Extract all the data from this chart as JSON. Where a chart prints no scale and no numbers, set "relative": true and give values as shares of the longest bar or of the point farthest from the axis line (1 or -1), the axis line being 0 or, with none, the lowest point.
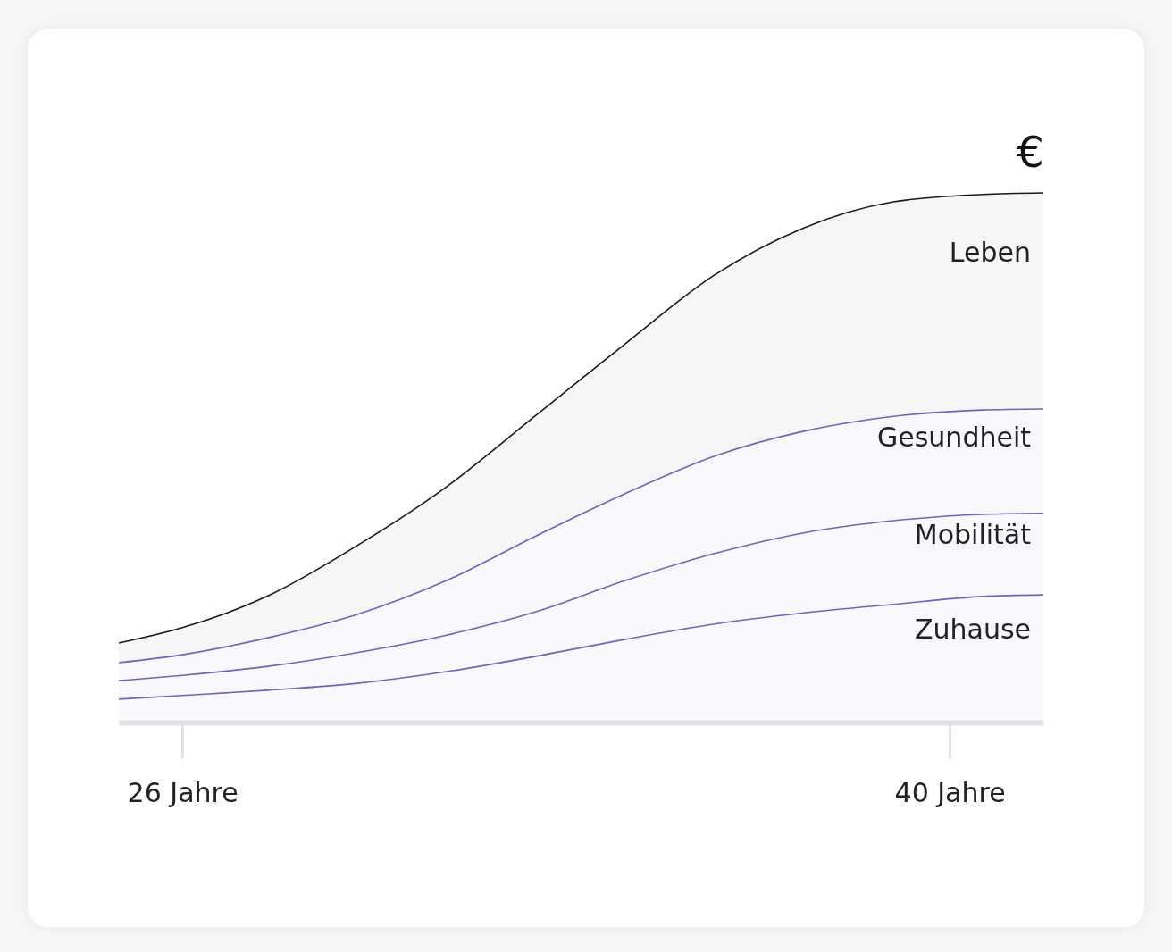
{
  "chart_data": {
    "type": "area",
    "stacked": true,
    "relative": true,
    "ylabel": "€",
    "x": [
      24.84,
      26,
      27.56,
      29.19,
      30.82,
      32.45,
      34.08,
      35.71,
      37.34,
      38.97,
      40.6,
      41.71
    ],
    "xlim": [
      24.84,
      41.71
    ],
    "xticks": [
      {
        "value": 26,
        "label": "26 Jahre"
      },
      {
        "value": 40,
        "label": "40 Jahre"
      }
    ],
    "series": [
      {
        "name": "Zuhause",
        "color": "#6b63c9",
        "values": [
          0.044,
          0.051,
          0.061,
          0.074,
          0.096,
          0.125,
          0.157,
          0.186,
          0.207,
          0.223,
          0.238,
          0.241
        ]
      },
      {
        "name": "Mobilität",
        "color": "#6b63c9",
        "values": [
          0.035,
          0.038,
          0.045,
          0.058,
          0.069,
          0.084,
          0.111,
          0.133,
          0.151,
          0.158,
          0.155,
          0.154
        ]
      },
      {
        "name": "Gesundheit",
        "color": "#6b63c9",
        "values": [
          0.034,
          0.039,
          0.054,
          0.072,
          0.103,
          0.143,
          0.164,
          0.184,
          0.192,
          0.197,
          0.197,
          0.197
        ]
      },
      {
        "name": "Leben",
        "color": "#1a1a1a",
        "values": [
          0.037,
          0.051,
          0.079,
          0.13,
          0.177,
          0.228,
          0.283,
          0.342,
          0.384,
          0.405,
          0.407,
          0.408
        ]
      }
    ],
    "grid": false,
    "legend": false
  }
}
